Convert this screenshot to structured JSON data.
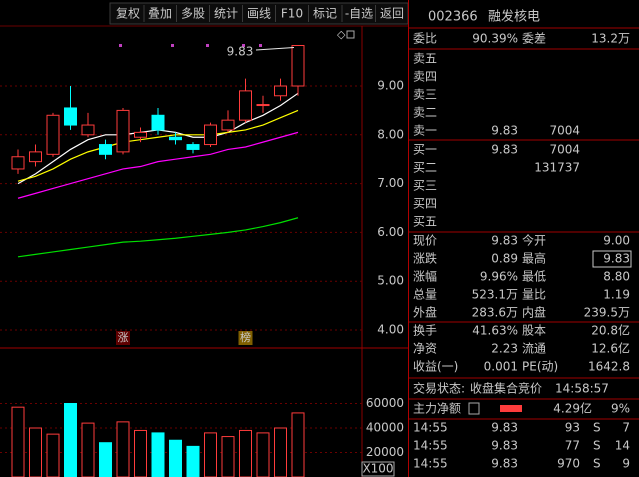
{
  "toolbar": [
    "复权",
    "叠加",
    "多股",
    "统计",
    "画线",
    "F10",
    "标记",
    "-自选",
    "返回"
  ],
  "kline": {
    "price_ticks": [
      {
        "value": 9,
        "label": "9.00"
      },
      {
        "value": 8,
        "label": "8.00"
      },
      {
        "value": 7,
        "label": "7.00"
      },
      {
        "value": 6,
        "label": "6.00"
      },
      {
        "value": 5,
        "label": "5.00"
      },
      {
        "value": 4,
        "label": "4.00"
      }
    ],
    "candles": {
      "open": [
        7.3,
        7.45,
        7.6,
        8.55,
        8.0,
        7.8,
        7.65,
        7.95,
        8.4,
        7.95,
        7.8,
        7.8,
        8.1,
        8.3,
        8.6,
        8.8,
        9.0
      ],
      "close": [
        7.55,
        7.65,
        8.4,
        8.2,
        8.2,
        7.6,
        8.5,
        8.05,
        8.1,
        7.9,
        7.7,
        8.2,
        8.3,
        8.9,
        8.62,
        9.0,
        9.83
      ],
      "high": [
        7.7,
        7.8,
        8.45,
        9.0,
        8.45,
        7.9,
        8.55,
        8.15,
        8.55,
        8.05,
        7.85,
        8.25,
        8.5,
        9.15,
        8.8,
        9.15,
        9.83
      ],
      "low": [
        7.2,
        7.35,
        7.55,
        8.1,
        7.95,
        7.5,
        7.6,
        7.85,
        8.0,
        7.8,
        7.62,
        7.75,
        8.05,
        8.25,
        8.45,
        8.7,
        8.8
      ]
    },
    "ma": [
      {
        "color": "#ffffff",
        "values": [
          7.0,
          7.2,
          7.45,
          7.7,
          7.9,
          8.0,
          8.0,
          8.05,
          8.1,
          8.05,
          7.95,
          7.95,
          8.05,
          8.25,
          8.4,
          8.6,
          8.85
        ]
      },
      {
        "color": "#ffff00",
        "values": [
          7.05,
          7.15,
          7.3,
          7.5,
          7.65,
          7.75,
          7.85,
          7.9,
          7.95,
          8.0,
          8.0,
          8.0,
          8.05,
          8.1,
          8.2,
          8.35,
          8.5
        ]
      },
      {
        "color": "#ff00ff",
        "values": [
          6.7,
          6.8,
          6.9,
          7.0,
          7.1,
          7.2,
          7.3,
          7.35,
          7.45,
          7.5,
          7.55,
          7.6,
          7.7,
          7.75,
          7.85,
          7.95,
          8.05
        ]
      },
      {
        "color": "#00e000",
        "values": [
          5.5,
          5.55,
          5.6,
          5.65,
          5.7,
          5.75,
          5.8,
          5.82,
          5.85,
          5.88,
          5.92,
          5.96,
          6.0,
          6.05,
          6.12,
          6.2,
          6.3
        ]
      }
    ],
    "max_label": "9.83",
    "tags": [
      "涨",
      "榜"
    ],
    "volume": {
      "values": [
        57000,
        40000,
        35000,
        60000,
        44000,
        28000,
        45000,
        38000,
        36000,
        30000,
        25000,
        36000,
        33000,
        38000,
        36000,
        40000,
        52310
      ],
      "ticks": [
        60000,
        40000,
        20000
      ],
      "unit": "X100"
    }
  },
  "quote": {
    "code": "002366",
    "name": "融发核电",
    "ratio": [
      "委比",
      "90.39%",
      "委差",
      "13.2万"
    ],
    "asks": [
      {
        "label": "卖五"
      },
      {
        "label": "卖四"
      },
      {
        "label": "卖三"
      },
      {
        "label": "卖二"
      },
      {
        "label": "卖一",
        "price": "9.83",
        "volume": "7004"
      }
    ],
    "bids": [
      {
        "label": "买一",
        "price": "9.83",
        "volume": "7004"
      },
      {
        "label": "买二",
        "volume": "131737"
      },
      {
        "label": "买三"
      },
      {
        "label": "买四"
      },
      {
        "label": "买五"
      }
    ],
    "stats": [
      [
        "现价",
        "9.83",
        "今开",
        "9.00"
      ],
      [
        "涨跌",
        "0.89",
        "最高",
        "9.83"
      ],
      [
        "涨幅",
        "9.96%",
        "最低",
        "8.80"
      ],
      [
        "总量",
        "523.1万",
        "量比",
        "1.19"
      ],
      [
        "外盘",
        "283.6万",
        "内盘",
        "239.5万"
      ]
    ],
    "fundamentals": [
      [
        "换手",
        "41.63%",
        "股本",
        "20.8亿"
      ],
      [
        "净资",
        "2.23",
        "流通",
        "12.6亿"
      ],
      [
        "收益(一)",
        "0.001",
        "PE(动)",
        "1642.8"
      ]
    ],
    "status": [
      "交易状态:",
      "收盘集合竞价",
      "14:58:57"
    ],
    "main_flow": [
      "主力净额",
      "4.29亿",
      "9%"
    ],
    "ticks": [
      [
        "14:55",
        "9.83",
        "93",
        "S",
        "7"
      ],
      [
        "14:55",
        "9.83",
        "77",
        "S",
        "14"
      ],
      [
        "14:55",
        "9.83",
        "970",
        "S",
        "9"
      ]
    ]
  }
}
